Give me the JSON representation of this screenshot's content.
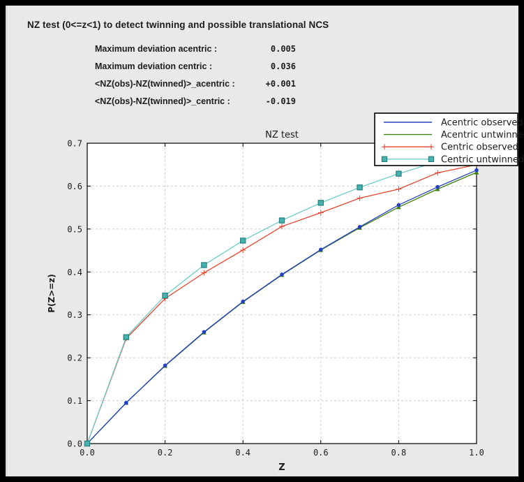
{
  "window": {
    "title": "NZ test (0<=z<1) to detect twinning and possible translational NCS",
    "stats": {
      "rows": [
        {
          "label": "Maximum deviation acentric :",
          "value": "0.005"
        },
        {
          "label": "Maximum deviation centric :",
          "value": "0.036"
        },
        {
          "label": "<NZ(obs)-NZ(twinned)>_acentric :",
          "value": "+0.001"
        },
        {
          "label": "<NZ(obs)-NZ(twinned)>_centric :",
          "value": "-0.019"
        }
      ]
    }
  },
  "chart_data": {
    "type": "line",
    "title": "NZ test",
    "xlabel": "Z",
    "ylabel": "P(Z>=z)",
    "xlim": [
      0.0,
      1.0
    ],
    "ylim": [
      0.0,
      0.7
    ],
    "xticks": [
      0.0,
      0.2,
      0.4,
      0.6,
      0.8,
      1.0
    ],
    "yticks": [
      0.0,
      0.1,
      0.2,
      0.3,
      0.4,
      0.5,
      0.6,
      0.7
    ],
    "grid": true,
    "legend_position": "upper right",
    "x": [
      0.0,
      0.1,
      0.2,
      0.3,
      0.4,
      0.5,
      0.6,
      0.7,
      0.8,
      0.9,
      1.0
    ],
    "series": [
      {
        "name": "Acentric observed",
        "color": "#2441c4",
        "marker": "circle",
        "values": [
          0.0,
          0.095,
          0.182,
          0.26,
          0.331,
          0.394,
          0.452,
          0.505,
          0.556,
          0.598,
          0.637
        ]
      },
      {
        "name": "Acentric untwinned",
        "color": "#41800d",
        "marker": "triangle",
        "values": [
          0.0,
          0.095,
          0.181,
          0.259,
          0.33,
          0.393,
          0.451,
          0.503,
          0.551,
          0.593,
          0.632
        ]
      },
      {
        "name": "Centric observed",
        "color": "#e8432e",
        "marker": "plus",
        "values": [
          0.0,
          0.245,
          0.338,
          0.398,
          0.451,
          0.506,
          0.538,
          0.572,
          0.593,
          0.631,
          0.65
        ]
      },
      {
        "name": "Centric untwinned",
        "color": "#6ecdc9",
        "marker": "square",
        "marker_fill": "#46b1ae",
        "marker_edge": "#26817d",
        "values": [
          0.0,
          0.248,
          0.345,
          0.416,
          0.473,
          0.52,
          0.561,
          0.597,
          0.629,
          0.657,
          0.683
        ]
      }
    ],
    "colors": {
      "plot_background": "#ffffff",
      "window_background": "#e9e9e9",
      "grid": "#c8c8c8",
      "frame": "#000000",
      "text": "#1c1c1c"
    }
  }
}
